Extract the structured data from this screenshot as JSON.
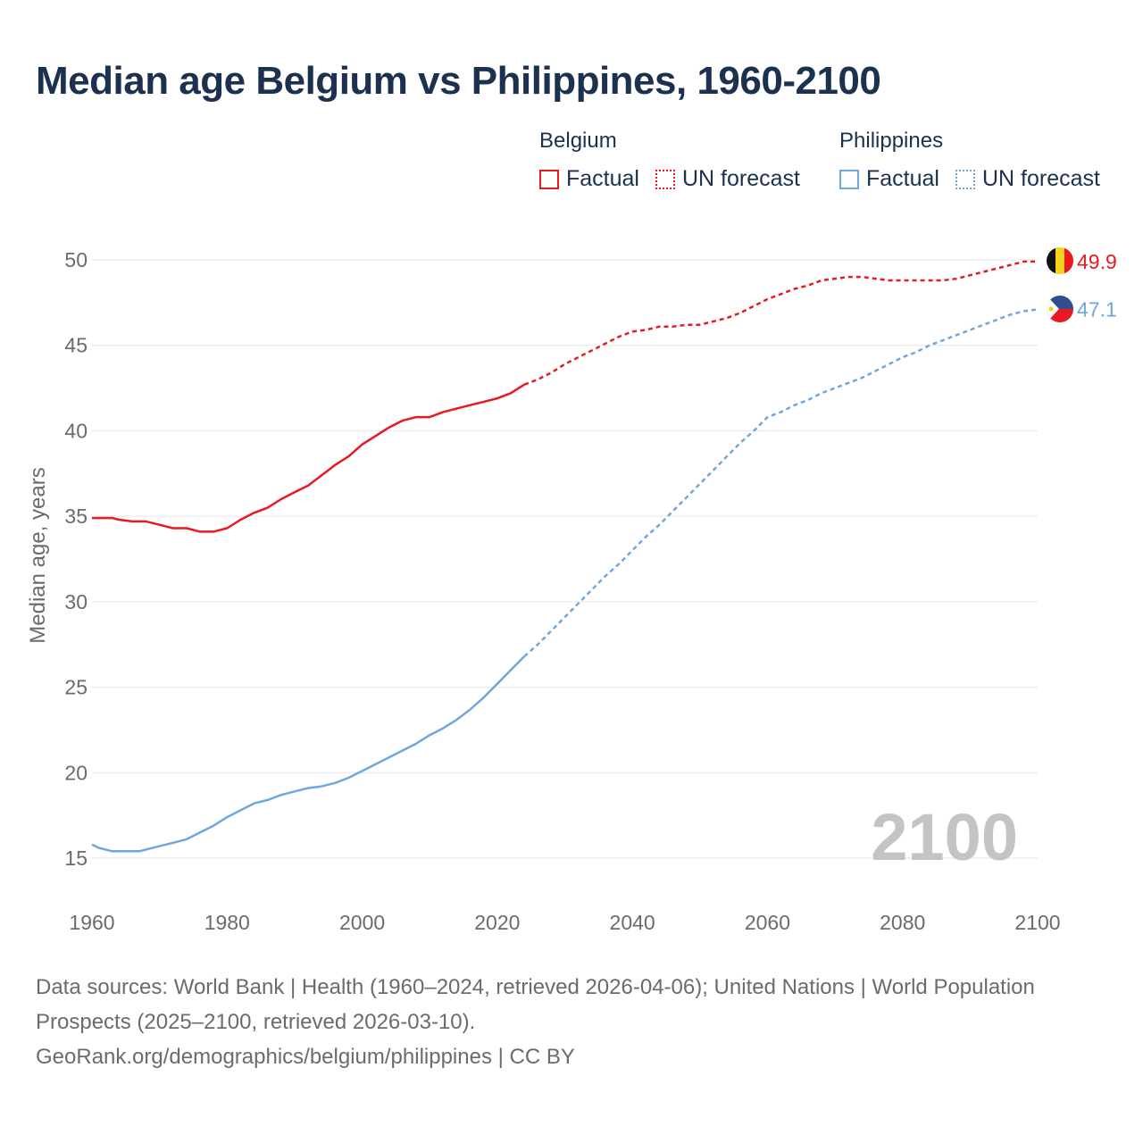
{
  "title": "Median age Belgium vs Philippines, 1960-2100",
  "legend": {
    "belgium": {
      "name": "Belgium",
      "factual": "Factual",
      "forecast": "UN forecast"
    },
    "philippines": {
      "name": "Philippines",
      "factual": "Factual",
      "forecast": "UN forecast"
    }
  },
  "colors": {
    "belgium": "#e8191f",
    "philippines": "#6ea7e0",
    "title": "#1c3150",
    "grid": "#e6e6e6",
    "year_watermark": "#c4c4c4"
  },
  "footer": {
    "sources": "Data sources: World Bank | Health (1960–2024, retrieved 2026-04-06); United Nations | World Population Prospects (2025–2100, retrieved 2026-03-10).",
    "link": "GeoRank.org/demographics/belgium/philippines | CC BY"
  },
  "chart_data": {
    "type": "line",
    "title": "Median age Belgium vs Philippines, 1960-2100",
    "xlabel": "",
    "ylabel": "Median age, years",
    "xlim": [
      1960,
      2100
    ],
    "ylim": [
      13,
      51
    ],
    "xticks": [
      1960,
      1980,
      2000,
      2020,
      2040,
      2060,
      2080,
      2100
    ],
    "yticks": [
      15,
      20,
      25,
      30,
      35,
      40,
      45,
      50
    ],
    "grid": true,
    "year_label": "2100",
    "forecast_start": 2024,
    "series": [
      {
        "name": "Belgium",
        "color": "#e8191f",
        "end_label": "49.9",
        "x": [
          1960,
          1963,
          1964,
          1966,
          1968,
          1970,
          1972,
          1974,
          1976,
          1978,
          1980,
          1982,
          1984,
          1986,
          1988,
          1990,
          1992,
          1994,
          1996,
          1998,
          2000,
          2002,
          2004,
          2006,
          2008,
          2010,
          2012,
          2014,
          2016,
          2018,
          2020,
          2022,
          2024,
          2026,
          2028,
          2030,
          2032,
          2034,
          2036,
          2038,
          2040,
          2042,
          2044,
          2046,
          2048,
          2050,
          2052,
          2054,
          2056,
          2058,
          2060,
          2062,
          2064,
          2066,
          2068,
          2070,
          2072,
          2074,
          2076,
          2078,
          2080,
          2082,
          2084,
          2086,
          2088,
          2090,
          2092,
          2094,
          2096,
          2098,
          2100
        ],
        "y": [
          34.9,
          34.9,
          34.8,
          34.7,
          34.7,
          34.5,
          34.3,
          34.3,
          34.1,
          34.1,
          34.3,
          34.8,
          35.2,
          35.5,
          36.0,
          36.4,
          36.8,
          37.4,
          38.0,
          38.5,
          39.2,
          39.7,
          40.2,
          40.6,
          40.8,
          40.8,
          41.1,
          41.3,
          41.5,
          41.7,
          41.9,
          42.2,
          42.7,
          43.0,
          43.4,
          43.9,
          44.3,
          44.7,
          45.1,
          45.5,
          45.8,
          45.9,
          46.1,
          46.1,
          46.2,
          46.2,
          46.4,
          46.6,
          46.9,
          47.3,
          47.7,
          48.0,
          48.3,
          48.5,
          48.8,
          48.9,
          49.0,
          49.0,
          48.9,
          48.8,
          48.8,
          48.8,
          48.8,
          48.8,
          48.9,
          49.1,
          49.3,
          49.5,
          49.7,
          49.9,
          49.9
        ]
      },
      {
        "name": "Philippines",
        "color": "#6ea7e0",
        "end_label": "47.1",
        "x": [
          1960,
          1961,
          1963,
          1965,
          1967,
          1970,
          1972,
          1974,
          1976,
          1978,
          1980,
          1982,
          1984,
          1986,
          1988,
          1990,
          1992,
          1994,
          1996,
          1998,
          2000,
          2002,
          2004,
          2006,
          2008,
          2010,
          2012,
          2014,
          2016,
          2018,
          2020,
          2022,
          2024,
          2026,
          2028,
          2030,
          2032,
          2034,
          2036,
          2038,
          2040,
          2042,
          2044,
          2046,
          2048,
          2050,
          2052,
          2054,
          2056,
          2058,
          2060,
          2062,
          2064,
          2066,
          2068,
          2070,
          2072,
          2074,
          2076,
          2078,
          2080,
          2082,
          2084,
          2086,
          2088,
          2090,
          2092,
          2094,
          2096,
          2098,
          2100
        ],
        "y": [
          15.8,
          15.6,
          15.4,
          15.4,
          15.4,
          15.7,
          15.9,
          16.1,
          16.5,
          16.9,
          17.4,
          17.8,
          18.2,
          18.4,
          18.7,
          18.9,
          19.1,
          19.2,
          19.4,
          19.7,
          20.1,
          20.5,
          20.9,
          21.3,
          21.7,
          22.2,
          22.6,
          23.1,
          23.7,
          24.4,
          25.2,
          26.0,
          26.8,
          27.5,
          28.3,
          29.1,
          29.9,
          30.7,
          31.5,
          32.2,
          33.0,
          33.8,
          34.5,
          35.3,
          36.1,
          36.9,
          37.7,
          38.5,
          39.3,
          40.0,
          40.8,
          41.1,
          41.5,
          41.8,
          42.2,
          42.5,
          42.8,
          43.1,
          43.5,
          43.9,
          44.3,
          44.6,
          45.0,
          45.3,
          45.6,
          45.9,
          46.2,
          46.5,
          46.8,
          47.0,
          47.1
        ]
      }
    ]
  }
}
